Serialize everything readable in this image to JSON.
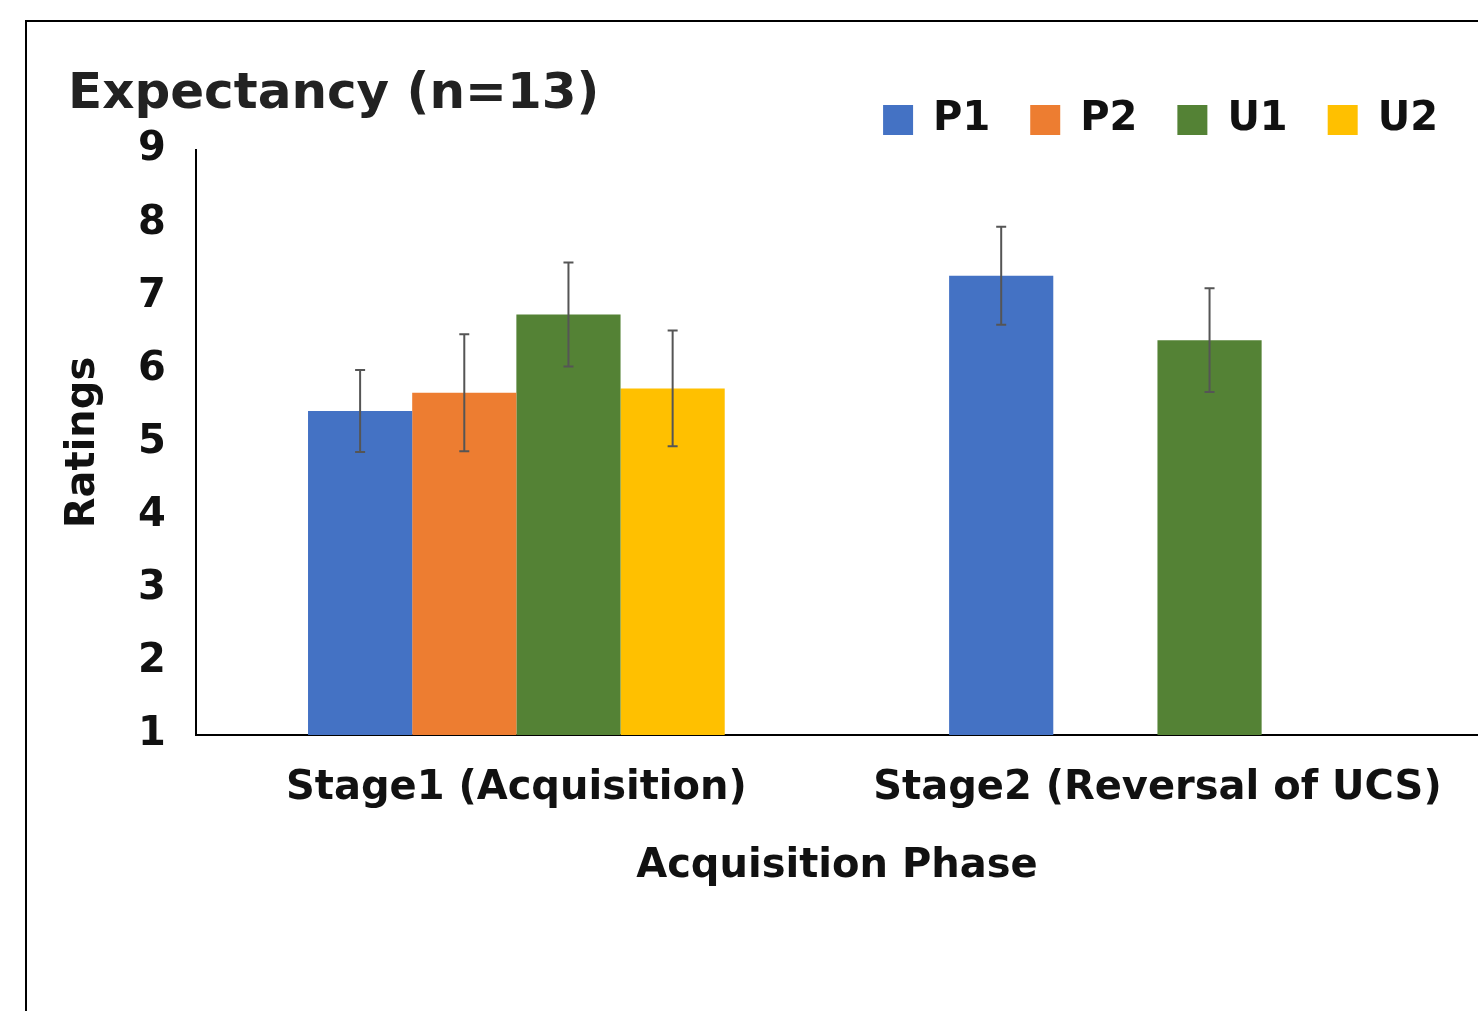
{
  "chart_data": {
    "type": "bar",
    "title": "Expectancy (n=13)",
    "xlabel": "Acquisition Phase",
    "ylabel": "Ratings",
    "categories": [
      "Stage1 (Acquisition)",
      "Stage2 (Reversal of UCS)"
    ],
    "series": [
      {
        "name": "P1",
        "color": "#4472c4",
        "values": [
          5.43,
          7.28
        ],
        "errors": [
          0.56,
          0.67
        ]
      },
      {
        "name": "P2",
        "color": "#ed7d31",
        "values": [
          5.68,
          null
        ],
        "errors": [
          0.8,
          null
        ]
      },
      {
        "name": "U1",
        "color": "#548235",
        "values": [
          6.75,
          6.4
        ],
        "errors": [
          0.71,
          0.71
        ]
      },
      {
        "name": "U2",
        "color": "#ffc000",
        "values": [
          5.74,
          null
        ],
        "errors": [
          0.79,
          null
        ]
      }
    ],
    "ylim": [
      1,
      9
    ],
    "yticks": [
      1,
      2,
      3,
      4,
      5,
      6,
      7,
      8,
      9
    ],
    "grid": false,
    "legend": "top right"
  }
}
